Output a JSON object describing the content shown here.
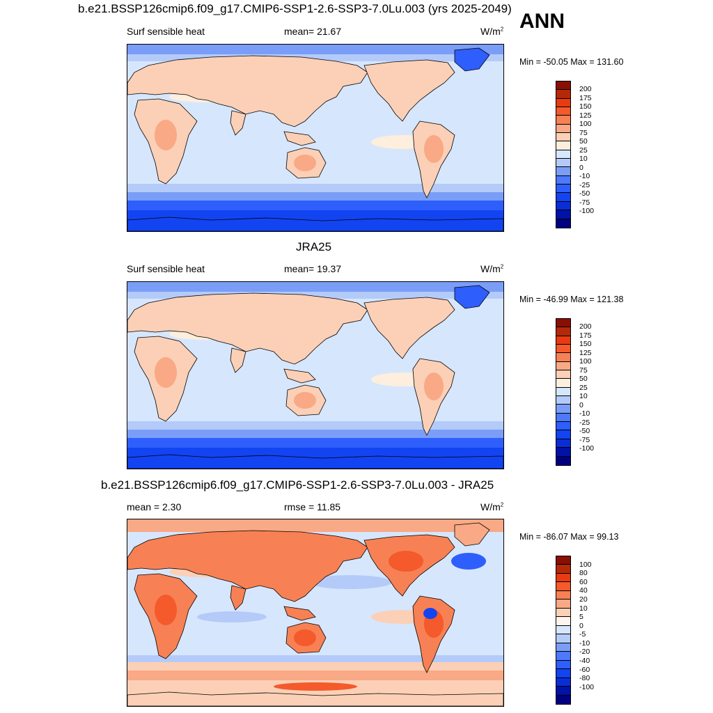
{
  "ann_label": "ANN",
  "colors": {
    "abs_scale": [
      "#000080",
      "#0012a8",
      "#0a2ed6",
      "#1244f2",
      "#2e5efc",
      "#4d79fa",
      "#7a9ef7",
      "#b4cbf9",
      "#d6e6fd",
      "#fdeedd",
      "#fbd0b6",
      "#f9a985",
      "#f78154",
      "#f45a2b",
      "#e83b12",
      "#b42a08",
      "#8a0f03"
    ],
    "diff_scale": [
      "#000080",
      "#0012a8",
      "#0a2ed6",
      "#1244f2",
      "#2e5efc",
      "#4d79fa",
      "#7a9ef7",
      "#b4cbf9",
      "#d6e6fd",
      "#fdf5ee",
      "#fbd0b6",
      "#f9a985",
      "#f78154",
      "#f45a2b",
      "#e83b12",
      "#b42a08",
      "#8a0f03"
    ]
  },
  "chart_data": [
    {
      "type": "heatmap",
      "title": "b.e21.BSSP126cmip6.f09_g17.CMIP6-SSP1-2.6-SSP3-7.0Lu.003 (yrs 2025-2049)",
      "left_label": "Surf sensible heat",
      "center_label": "mean=  21.67",
      "units": "W/m",
      "units_sup": "2",
      "minmax": "Min = -50.05 Max = 131.60",
      "levels": [
        "200",
        "175",
        "150",
        "125",
        "100",
        "75",
        "50",
        "25",
        "10",
        "0",
        "-10",
        "-25",
        "-50",
        "-75",
        "-100"
      ],
      "mean": 21.67,
      "min": -50.05,
      "max": 131.6
    },
    {
      "type": "heatmap",
      "title": "JRA25",
      "left_label": "Surf sensible heat",
      "center_label": "mean=  19.37",
      "units": "W/m",
      "units_sup": "2",
      "minmax": "Min = -46.99 Max = 121.38",
      "levels": [
        "200",
        "175",
        "150",
        "125",
        "100",
        "75",
        "50",
        "25",
        "10",
        "0",
        "-10",
        "-25",
        "-50",
        "-75",
        "-100"
      ],
      "mean": 19.37,
      "min": -46.99,
      "max": 121.38
    },
    {
      "type": "heatmap",
      "title": "b.e21.BSSP126cmip6.f09_g17.CMIP6-SSP1-2.6-SSP3-7.0Lu.003 - JRA25",
      "left_label": "mean =   2.30",
      "center_label": "rmse =  11.85",
      "units": "W/m",
      "units_sup": "2",
      "minmax": "Min = -86.07 Max =  99.13",
      "levels": [
        "100",
        "80",
        "60",
        "40",
        "20",
        "10",
        "5",
        "0",
        "-5",
        "-10",
        "-20",
        "-40",
        "-60",
        "-80",
        "-100"
      ],
      "mean": 2.3,
      "rmse": 11.85,
      "min": -86.07,
      "max": 99.13
    }
  ]
}
